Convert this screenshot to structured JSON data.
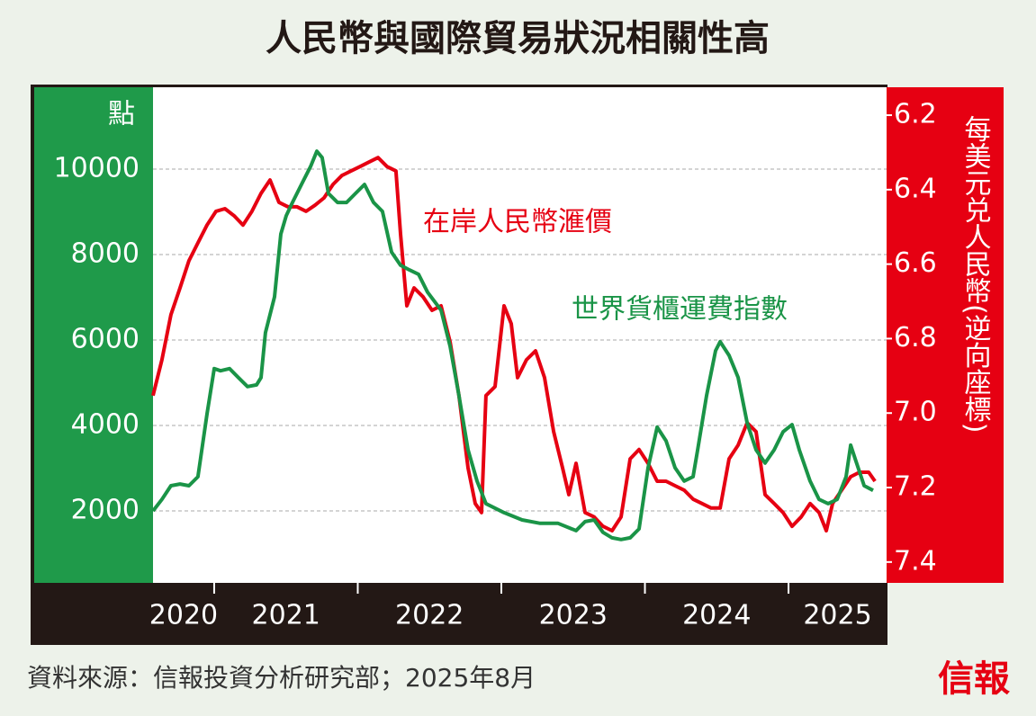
{
  "chart_data": {
    "type": "line",
    "title": "人民幣與國際貿易狀況相關性高",
    "y_label": "點",
    "y2_label": "每美元兑人民幣(逆向座標)",
    "xlim": [
      2020.574,
      2025.683
    ],
    "xticks": [
      2021,
      2022,
      2023,
      2024,
      2025
    ],
    "year_labels": [
      2020,
      2021,
      2022,
      2023,
      2024,
      2025
    ],
    "ylim": [
      316,
      11916
    ],
    "yticks": [
      2000,
      4000,
      6000,
      8000,
      10000
    ],
    "y2lim": [
      7.456,
      6.125
    ],
    "y2ticks": [
      6.2,
      6.4,
      6.6,
      6.8,
      {
        "value": 7,
        "label": "7.0"
      },
      7.2,
      7.4
    ],
    "grid": true,
    "series": [
      {
        "name": "在岸人民幣滙價",
        "color": "#e60012",
        "axis": "y2",
        "x": [
          2020.574,
          2020.636,
          2020.699,
          2020.762,
          2020.824,
          2020.887,
          2020.95,
          2021.013,
          2021.075,
          2021.138,
          2021.201,
          2021.263,
          2021.326,
          2021.389,
          2021.451,
          2021.514,
          2021.577,
          2021.64,
          2021.702,
          2021.765,
          2021.828,
          2021.89,
          2021.953,
          2022.016,
          2022.078,
          2022.141,
          2022.204,
          2022.266,
          2022.298,
          2022.342,
          2022.392,
          2022.455,
          2022.517,
          2022.58,
          2022.643,
          2022.705,
          2022.768,
          2022.818,
          2022.862,
          2022.893,
          2022.956,
          2023.019,
          2023.069,
          2023.113,
          2023.175,
          2023.238,
          2023.301,
          2023.364,
          2023.426,
          2023.47,
          2023.52,
          2023.583,
          2023.646,
          2023.708,
          2023.771,
          2023.834,
          2023.897,
          2023.959,
          2024.022,
          2024.085,
          2024.147,
          2024.21,
          2024.273,
          2024.335,
          2024.398,
          2024.461,
          2024.524,
          2024.586,
          2024.649,
          2024.712,
          2024.774,
          2024.837,
          2024.9,
          2024.962,
          2025.025,
          2025.088,
          2025.15,
          2025.213,
          2025.263,
          2025.307,
          2025.37,
          2025.433,
          2025.495,
          2025.558,
          2025.602
        ],
        "values": [
          6.953,
          6.857,
          6.736,
          6.664,
          6.591,
          6.543,
          6.495,
          6.458,
          6.451,
          6.47,
          6.495,
          6.458,
          6.41,
          6.374,
          6.434,
          6.446,
          6.446,
          6.458,
          6.442,
          6.422,
          6.386,
          6.362,
          6.35,
          6.338,
          6.326,
          6.314,
          6.338,
          6.35,
          6.519,
          6.712,
          6.664,
          6.688,
          6.724,
          6.712,
          6.809,
          6.953,
          7.147,
          7.243,
          7.267,
          6.953,
          6.929,
          6.712,
          6.76,
          6.905,
          6.857,
          6.833,
          6.905,
          7.05,
          7.147,
          7.219,
          7.135,
          7.267,
          7.279,
          7.304,
          7.316,
          7.279,
          7.123,
          7.098,
          7.135,
          7.183,
          7.183,
          7.195,
          7.207,
          7.231,
          7.243,
          7.255,
          7.255,
          7.123,
          7.086,
          7.026,
          7.05,
          7.219,
          7.243,
          7.267,
          7.304,
          7.279,
          7.243,
          7.267,
          7.316,
          7.243,
          7.207,
          7.171,
          7.159,
          7.159,
          7.183
        ]
      },
      {
        "name": "世界貨櫃運費指數",
        "color": "#1a9447",
        "axis": "y",
        "x": [
          2020.574,
          2020.636,
          2020.699,
          2020.762,
          2020.824,
          2020.887,
          2020.95,
          2021.0,
          2021.044,
          2021.107,
          2021.169,
          2021.232,
          2021.295,
          2021.326,
          2021.357,
          2021.42,
          2021.464,
          2021.502,
          2021.545,
          2021.608,
          2021.671,
          2021.715,
          2021.752,
          2021.796,
          2021.859,
          2021.922,
          2021.984,
          2022.047,
          2022.11,
          2022.172,
          2022.235,
          2022.298,
          2022.36,
          2022.423,
          2022.486,
          2022.58,
          2022.643,
          2022.705,
          2022.768,
          2022.831,
          2022.893,
          2023.019,
          2023.144,
          2023.27,
          2023.395,
          2023.52,
          2023.583,
          2023.646,
          2023.708,
          2023.771,
          2023.834,
          2023.897,
          2023.959,
          2024.022,
          2024.085,
          2024.147,
          2024.21,
          2024.273,
          2024.335,
          2024.367,
          2024.429,
          2024.492,
          2024.524,
          2024.586,
          2024.649,
          2024.712,
          2024.774,
          2024.837,
          2024.9,
          2024.962,
          2025.025,
          2025.075,
          2025.15,
          2025.213,
          2025.276,
          2025.339,
          2025.401,
          2025.433,
          2025.464,
          2025.527,
          2025.589
        ],
        "values": [
          2000,
          2270,
          2590,
          2630,
          2590,
          2800,
          4270,
          5330,
          5280,
          5330,
          5120,
          4910,
          4950,
          5120,
          6170,
          7010,
          8480,
          8910,
          9220,
          9640,
          10060,
          10420,
          10270,
          9430,
          9220,
          9220,
          9430,
          9640,
          9220,
          9010,
          8060,
          7750,
          7640,
          7540,
          7120,
          6700,
          5850,
          4700,
          3430,
          2700,
          2170,
          1960,
          1790,
          1710,
          1710,
          1540,
          1750,
          1790,
          1500,
          1370,
          1330,
          1370,
          1580,
          3010,
          3960,
          3640,
          3010,
          2700,
          2800,
          3430,
          4700,
          5750,
          5960,
          5640,
          5120,
          4060,
          3430,
          3120,
          3430,
          3850,
          4020,
          3430,
          2700,
          2270,
          2170,
          2270,
          2800,
          3540,
          3220,
          2590,
          2480
        ]
      }
    ]
  },
  "footer": {
    "source": "資料來源：信報投資分析研究部；2025年8月",
    "logo": "信報"
  }
}
